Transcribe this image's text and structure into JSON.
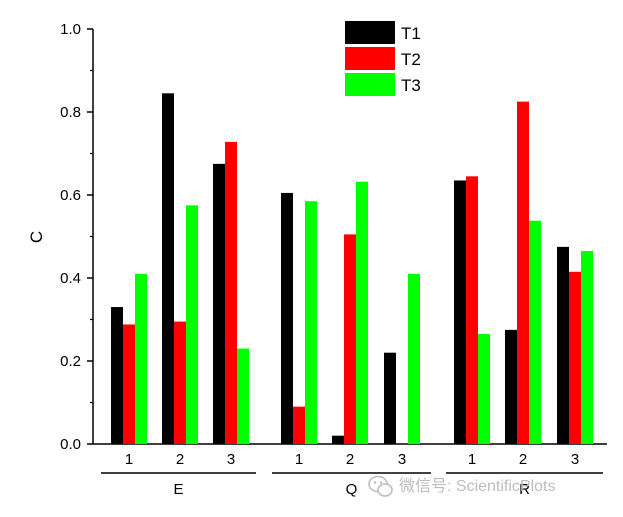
{
  "chart_data": {
    "type": "bar",
    "ylabel": "C",
    "ylim": [
      0,
      1.0
    ],
    "yticks": [
      "0.0",
      "0.2",
      "0.4",
      "0.6",
      "0.8",
      "1.0"
    ],
    "groups": [
      {
        "name": "E",
        "categories": [
          "1",
          "2",
          "3"
        ]
      },
      {
        "name": "Q",
        "categories": [
          "1",
          "2",
          "3"
        ]
      },
      {
        "name": "R",
        "categories": [
          "1",
          "2",
          "3"
        ]
      }
    ],
    "series": [
      {
        "name": "T1",
        "color": "#000000",
        "values": [
          0.33,
          0.845,
          0.675,
          0.605,
          0.02,
          0.22,
          0.635,
          0.275,
          0.475
        ]
      },
      {
        "name": "T2",
        "color": "#ff0000",
        "values": [
          0.288,
          0.295,
          0.728,
          0.09,
          0.505,
          0.0,
          0.645,
          0.825,
          0.415
        ]
      },
      {
        "name": "T3",
        "color": "#00ff00",
        "values": [
          0.41,
          0.575,
          0.23,
          0.585,
          0.632,
          0.41,
          0.265,
          0.538,
          0.465
        ]
      }
    ],
    "legend_position": "top-center",
    "grid": false
  },
  "watermark": {
    "text": "微信号: ScientificPlots",
    "icon": "wechat-icon"
  }
}
